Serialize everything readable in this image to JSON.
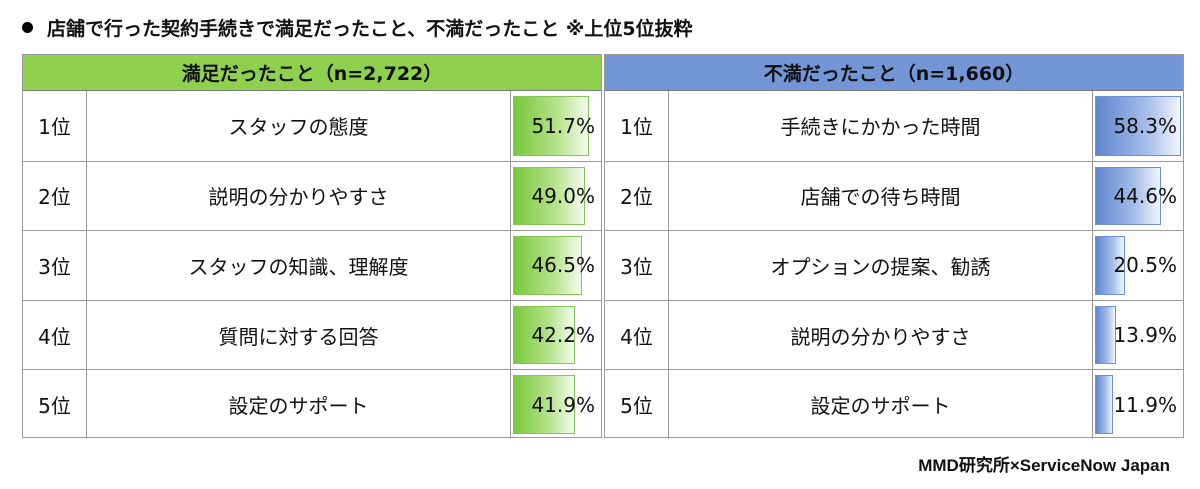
{
  "title": "店舗で行った契約手続きで満足だったこと、不満だったこと ※上位5位抜粋",
  "credit": "MMD研究所×ServiceNow Japan",
  "colors": {
    "satisfied_header": "#8fd14f",
    "dissatisfied_header": "#7396d6"
  },
  "chart_data": [
    {
      "type": "table",
      "title": "満足だったこと（n=2,722）",
      "ranks": [
        "1位",
        "2位",
        "3位",
        "4位",
        "5位"
      ],
      "categories": [
        "スタッフの態度",
        "説明の分かりやすさ",
        "スタッフの知識、理解度",
        "質問に対する回答",
        "設定のサポート"
      ],
      "values": [
        51.7,
        49.0,
        46.5,
        42.2,
        41.9
      ],
      "value_labels": [
        "51.7%",
        "49.0%",
        "46.5%",
        "42.2%",
        "41.9%"
      ],
      "bar_max": 58.3
    },
    {
      "type": "table",
      "title": "不満だったこと（n=1,660）",
      "ranks": [
        "1位",
        "2位",
        "3位",
        "4位",
        "5位"
      ],
      "categories": [
        "手続きにかかった時間",
        "店舗での待ち時間",
        "オプションの提案、勧誘",
        "説明の分かりやすさ",
        "設定のサポート"
      ],
      "values": [
        58.3,
        44.6,
        20.5,
        13.9,
        11.9
      ],
      "value_labels": [
        "58.3%",
        "44.6%",
        "20.5%",
        "13.9%",
        "11.9%"
      ],
      "bar_max": 58.3
    }
  ]
}
